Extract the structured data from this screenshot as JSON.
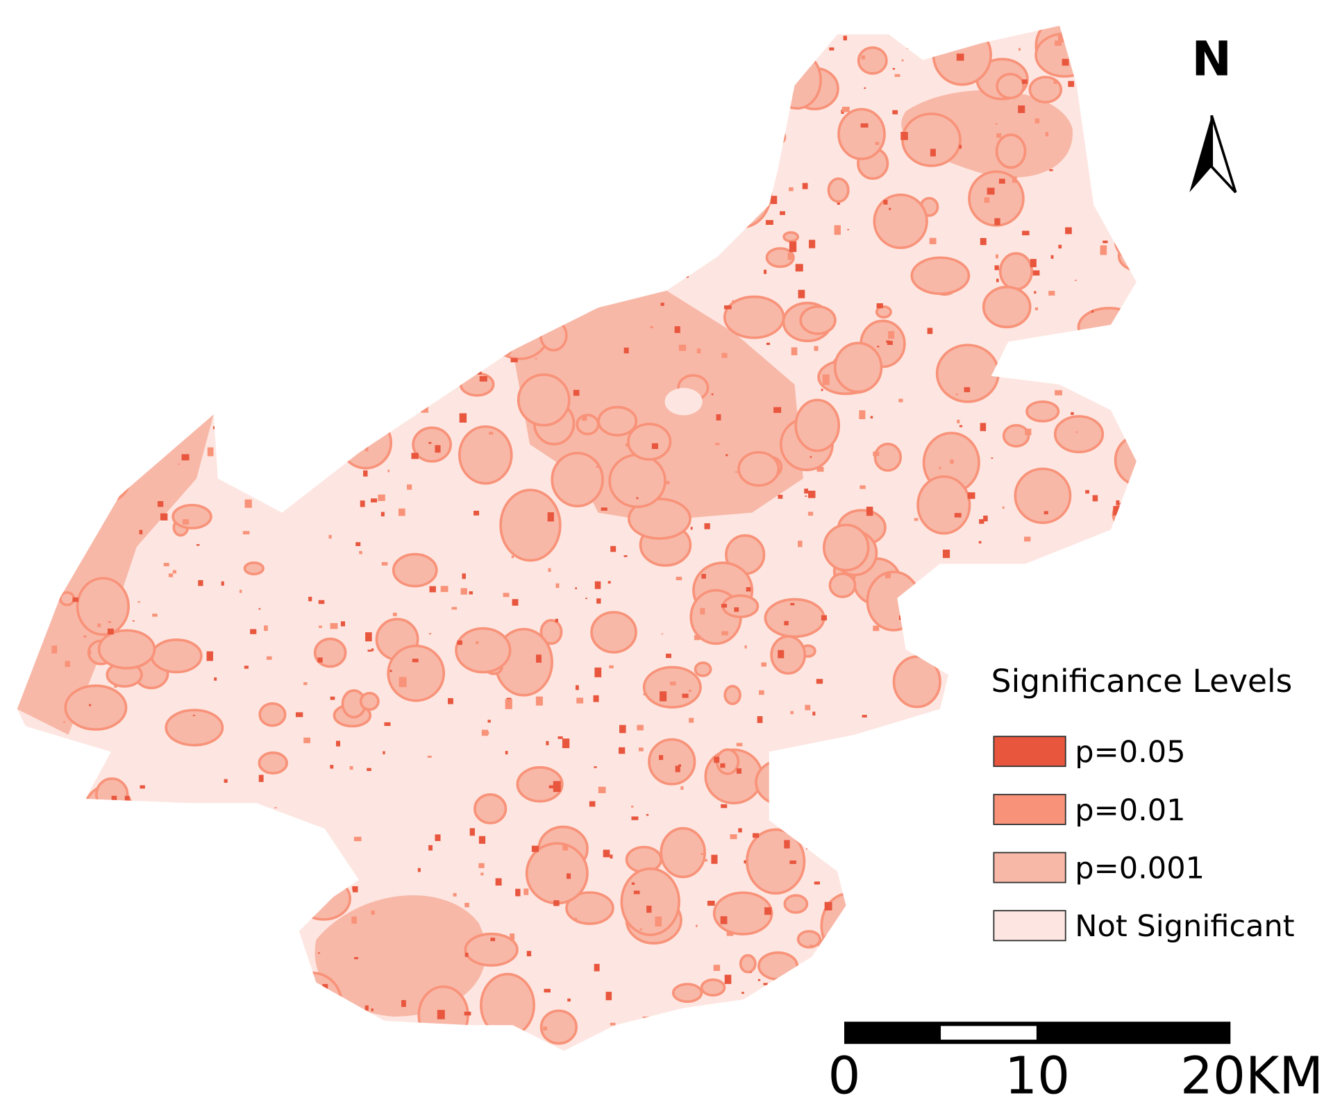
{
  "north_label": "N",
  "legend": {
    "title": "Significance Levels",
    "items": [
      {
        "label": "p=0.05",
        "color": "#e8563e"
      },
      {
        "label": "p=0.01",
        "color": "#f8937a"
      },
      {
        "label": "p=0.001",
        "color": "#f8b8a8"
      },
      {
        "label": "Not Significant",
        "color": "#fde6e1"
      }
    ]
  },
  "scale_bar": {
    "labels": [
      "0",
      "10",
      "20KM"
    ]
  }
}
